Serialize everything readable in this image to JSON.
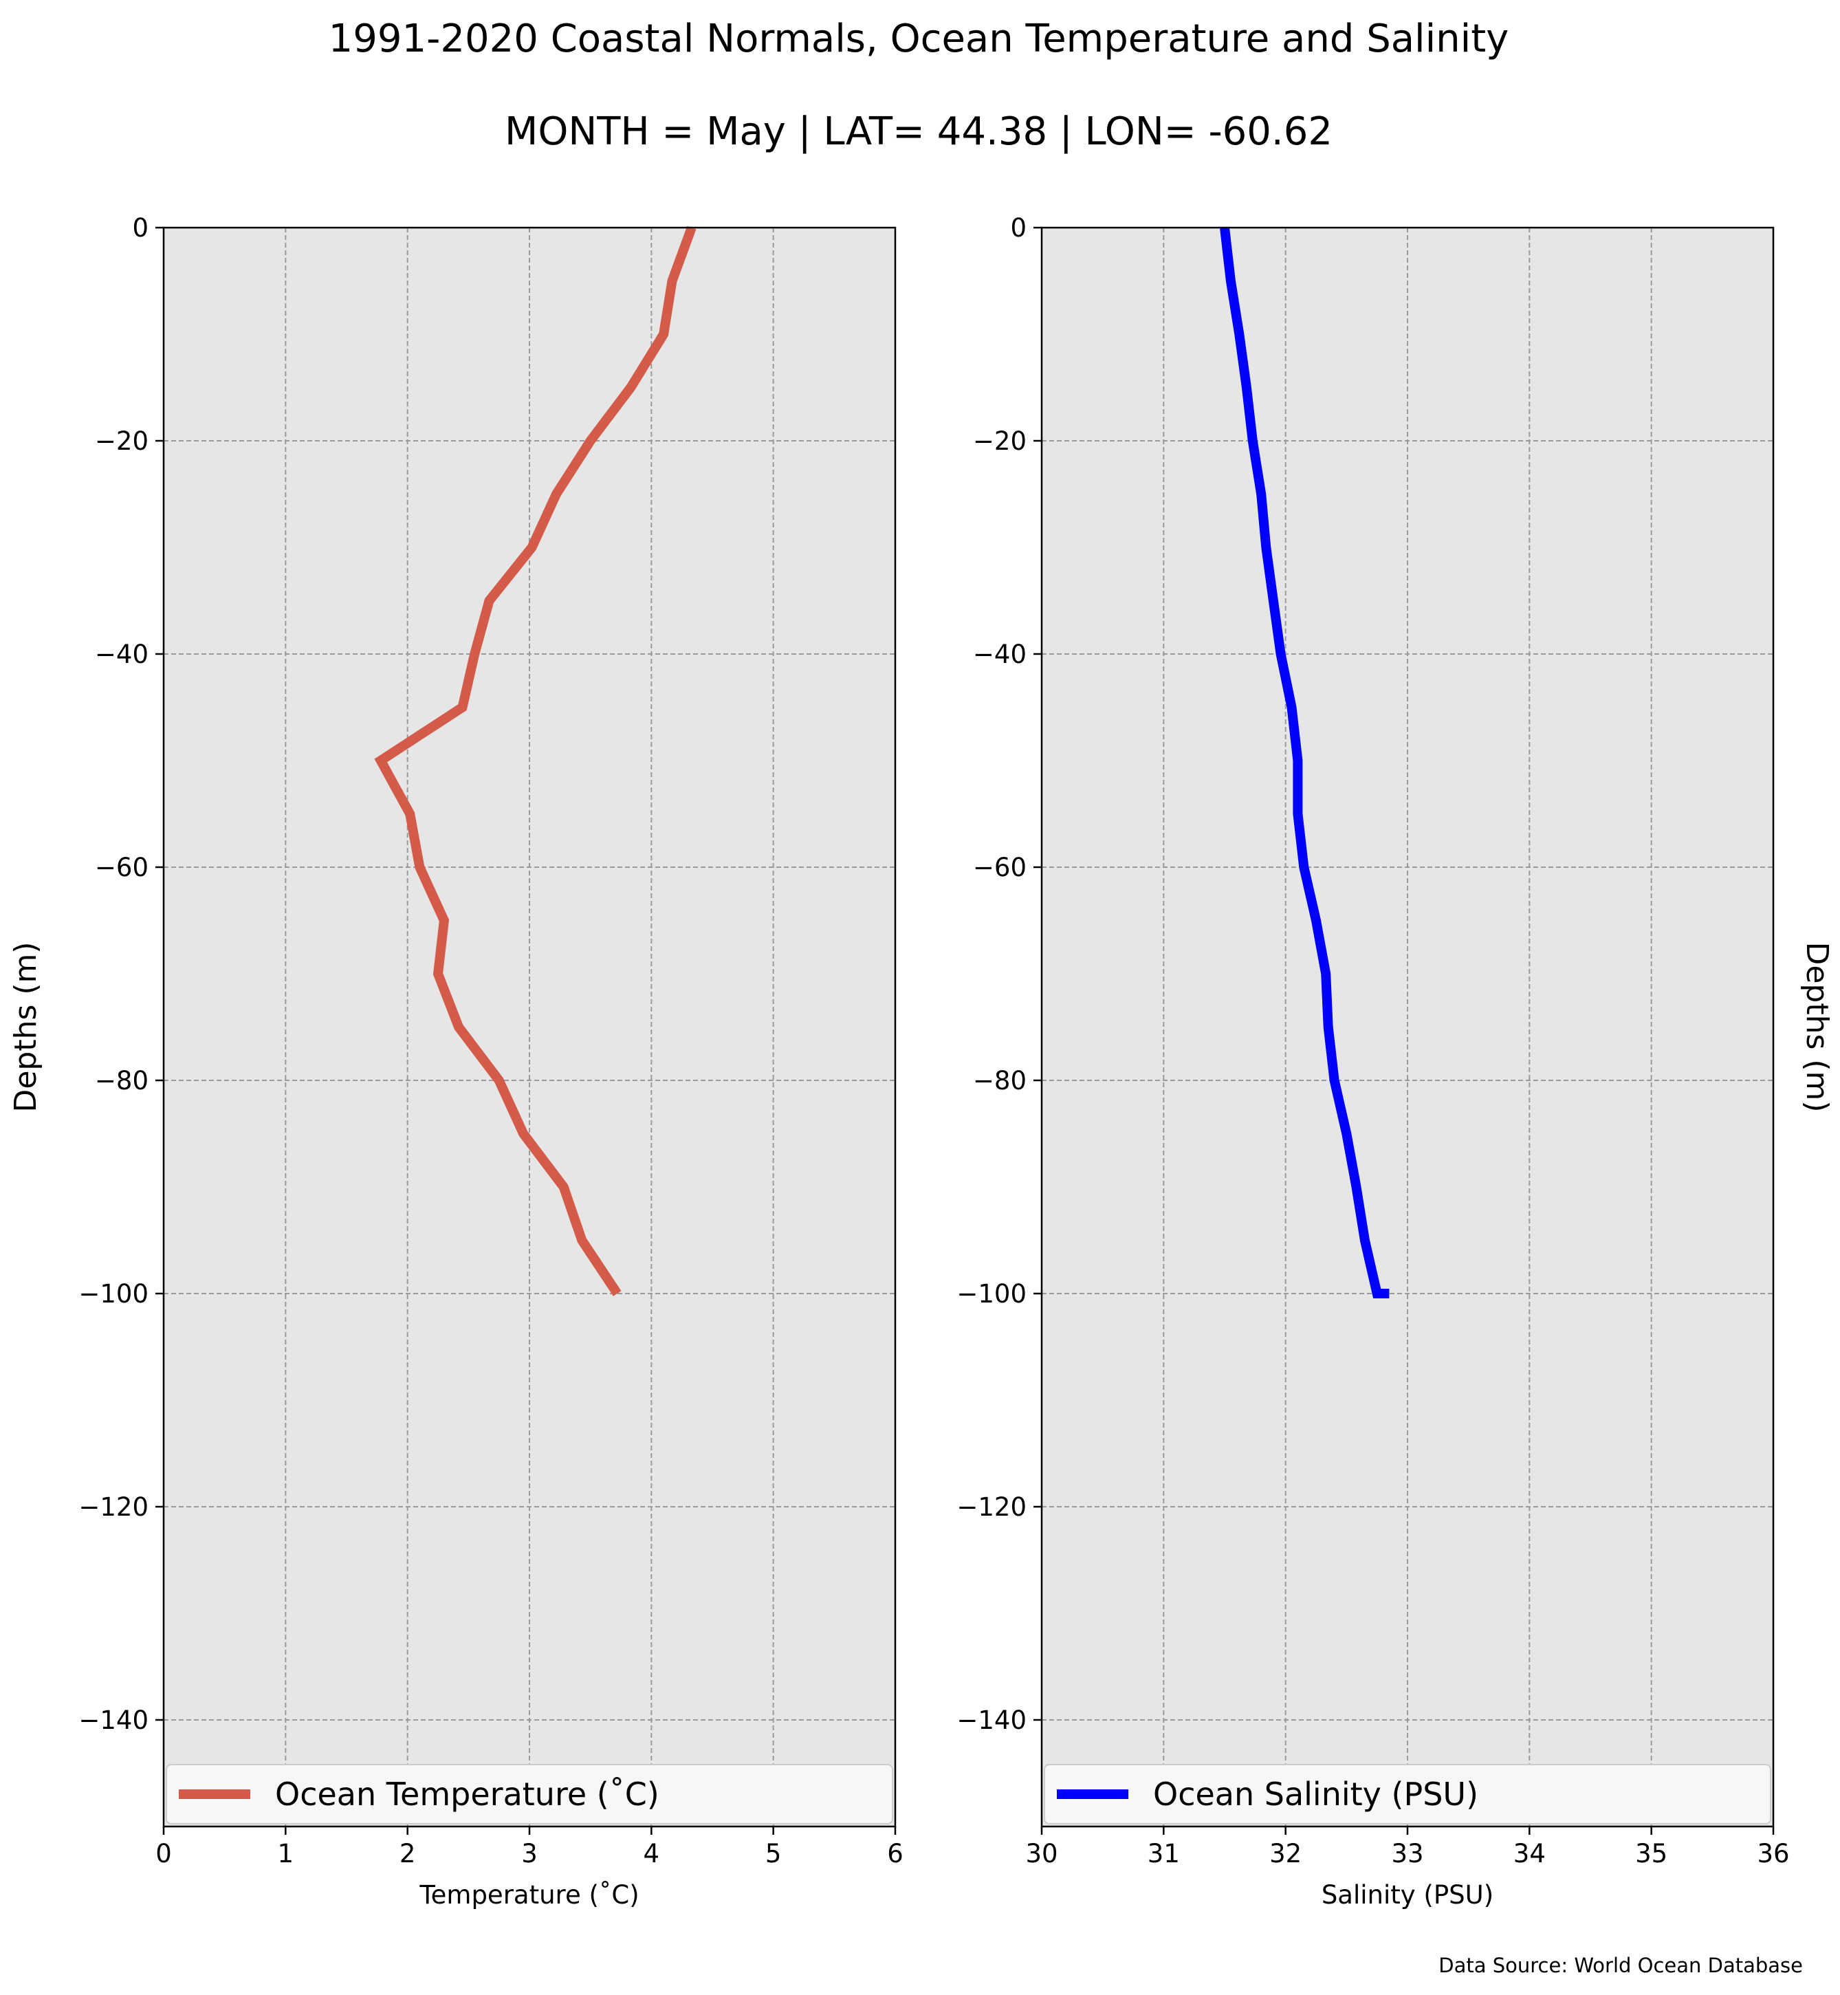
{
  "title": "1991-2020 Coastal Normals, Ocean Temperature and Salinity",
  "subtitle": "MONTH = May | LAT= 44.38 | LON= -60.62",
  "source_note": "Data Source: World Ocean Database",
  "chart_data": [
    {
      "type": "line",
      "xlabel": "Temperature (˚C)",
      "ylabel": "Depths (m)",
      "xlim": [
        0,
        6
      ],
      "ylim": [
        -150,
        0
      ],
      "xticks": [
        0,
        1,
        2,
        3,
        4,
        5,
        6
      ],
      "yticks": [
        0,
        -20,
        -40,
        -60,
        -80,
        -100,
        -120,
        -140
      ],
      "ytick_labels": [
        "0",
        "−20",
        "−40",
        "−60",
        "−80",
        "−100",
        "−120",
        "−140"
      ],
      "grid": true,
      "legend": "bottom",
      "background": "#e6e6e6",
      "series": [
        {
          "name": "Ocean Temperature (˚C)",
          "color": "#d45a4a",
          "x": [
            4.33,
            4.17,
            4.1,
            3.83,
            3.5,
            3.22,
            3.02,
            2.67,
            2.55,
            2.45,
            1.78,
            2.02,
            2.1,
            2.3,
            2.25,
            2.42,
            2.75,
            2.95,
            3.28,
            3.43,
            3.72
          ],
          "y": [
            0,
            -5,
            -10,
            -15,
            -20,
            -25,
            -30,
            -35,
            -40,
            -45,
            -50,
            -55,
            -60,
            -65,
            -70,
            -75,
            -80,
            -85,
            -90,
            -95,
            -100
          ]
        }
      ]
    },
    {
      "type": "line",
      "xlabel": "Salinity (PSU)",
      "ylabel": "Depths (m)",
      "xlim": [
        30,
        36
      ],
      "ylim": [
        -150,
        0
      ],
      "xticks": [
        30,
        31,
        32,
        33,
        34,
        35,
        36
      ],
      "yticks": [
        0,
        -20,
        -40,
        -60,
        -80,
        -100,
        -120,
        -140
      ],
      "ytick_labels": [
        "0",
        "−20",
        "−40",
        "−60",
        "−80",
        "−100",
        "−120",
        "−140"
      ],
      "grid": true,
      "legend": "bottom",
      "background": "#e6e6e6",
      "series": [
        {
          "name": "Ocean Salinity (PSU)",
          "color": "#0000ff",
          "x": [
            31.5,
            31.55,
            31.62,
            31.68,
            31.73,
            31.8,
            31.84,
            31.9,
            31.96,
            32.05,
            32.1,
            32.1,
            32.15,
            32.25,
            32.33,
            32.35,
            32.4,
            32.5,
            32.58,
            32.65,
            32.75,
            32.85
          ],
          "y": [
            0,
            -5,
            -10,
            -15,
            -20,
            -25,
            -30,
            -35,
            -40,
            -45,
            -50,
            -55,
            -60,
            -65,
            -70,
            -75,
            -80,
            -85,
            -90,
            -95,
            -100,
            -100
          ]
        }
      ]
    }
  ]
}
